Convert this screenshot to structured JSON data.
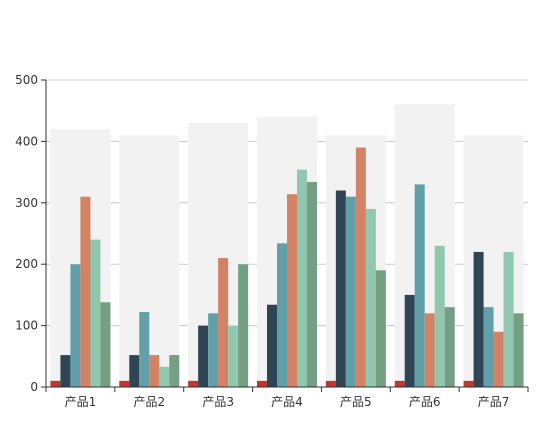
{
  "chart_data": {
    "type": "bar",
    "categories": [
      "产品1",
      "产品2",
      "产品3",
      "产品4",
      "产品5",
      "产品6",
      "产品7"
    ],
    "ylim": [
      0,
      500
    ],
    "yticks": [
      0,
      100,
      200,
      300,
      400,
      500
    ],
    "grid": true,
    "background_bars": [
      420,
      410,
      430,
      440,
      410,
      460,
      410
    ],
    "background_color": "#f2f2f2",
    "series": [
      {
        "color": "#c23531",
        "values": [
          10,
          10,
          10,
          10,
          10,
          10,
          10
        ]
      },
      {
        "color": "#2f4554",
        "values": [
          52,
          52,
          100,
          134,
          320,
          150,
          220
        ]
      },
      {
        "color": "#61a0a8",
        "values": [
          200,
          122,
          120,
          234,
          310,
          330,
          130
        ]
      },
      {
        "color": "#d48265",
        "values": [
          310,
          52,
          210,
          314,
          390,
          120,
          90
        ]
      },
      {
        "color": "#91c7ae",
        "values": [
          240,
          33,
          100,
          354,
          290,
          230,
          220
        ]
      },
      {
        "color": "#749f83",
        "values": [
          138,
          52,
          200,
          334,
          190,
          130,
          120
        ]
      }
    ]
  }
}
